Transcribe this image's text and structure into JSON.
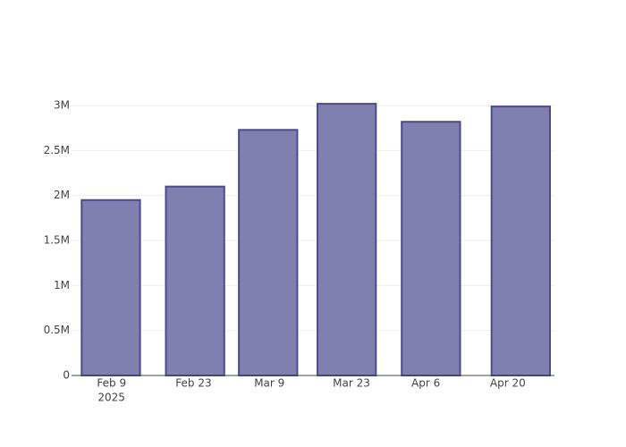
{
  "chart_data": {
    "type": "bar",
    "x": [
      "2025-02-11",
      "2025-02-26",
      "2025-03-11",
      "2025-03-25",
      "2025-04-09",
      "2025-04-25"
    ],
    "values": [
      1950000,
      2100000,
      2730000,
      3020000,
      2820000,
      2990000
    ],
    "color": "#7f7fb0",
    "edge_color": "#4b4b8e",
    "xlim": [
      "2025-02-04",
      "2025-05-01"
    ],
    "xticks": [
      {
        "value": "2025-02-09",
        "label": "Feb 9"
      },
      {
        "value": "2025-02-23",
        "label": "Feb 23"
      },
      {
        "value": "2025-03-09",
        "label": "Mar 9"
      },
      {
        "value": "2025-03-23",
        "label": "Mar 23"
      },
      {
        "value": "2025-04-06",
        "label": "Apr 6"
      },
      {
        "value": "2025-04-20",
        "label": "Apr 20"
      }
    ],
    "x_year_label": "2025",
    "ylim": [
      0,
      3180000
    ],
    "yticks": [
      0,
      {
        "value": 500000,
        "label": "0.5M"
      },
      {
        "value": 1000000,
        "label": "1M"
      },
      {
        "value": 1500000,
        "label": "1.5M"
      },
      {
        "value": 2000000,
        "label": "2M"
      },
      {
        "value": 2500000,
        "label": "2.5M"
      },
      {
        "value": 3000000,
        "label": "3M"
      }
    ],
    "grid": true
  }
}
